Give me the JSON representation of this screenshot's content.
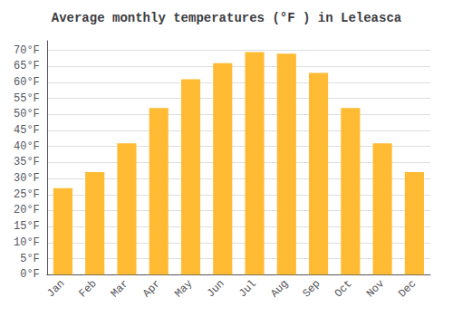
{
  "chart_data": {
    "type": "bar",
    "title": "Average monthly temperatures (°F ) in Leleasca",
    "categories": [
      "Jan",
      "Feb",
      "Mar",
      "Apr",
      "May",
      "Jun",
      "Jul",
      "Aug",
      "Sep",
      "Oct",
      "Nov",
      "Dec"
    ],
    "values": [
      27,
      32,
      41,
      52,
      61,
      66,
      69.5,
      69,
      63,
      52,
      41,
      32
    ],
    "color": "#FFBB33",
    "ylim": [
      0,
      73
    ],
    "yticks": [
      {
        "value": 0,
        "label": "0°F"
      },
      {
        "value": 5,
        "label": "5°F"
      },
      {
        "value": 10,
        "label": "10°F"
      },
      {
        "value": 15,
        "label": "15°F"
      },
      {
        "value": 20,
        "label": "20°F"
      },
      {
        "value": 25,
        "label": "25°F"
      },
      {
        "value": 30,
        "label": "30°F"
      },
      {
        "value": 35,
        "label": "35°F"
      },
      {
        "value": 40,
        "label": "40°F"
      },
      {
        "value": 45,
        "label": "45°F"
      },
      {
        "value": 50,
        "label": "50°F"
      },
      {
        "value": 55,
        "label": "55°F"
      },
      {
        "value": 60,
        "label": "60°F"
      },
      {
        "value": 65,
        "label": "65°F"
      },
      {
        "value": 70,
        "label": "70°F"
      }
    ],
    "grid": true
  }
}
